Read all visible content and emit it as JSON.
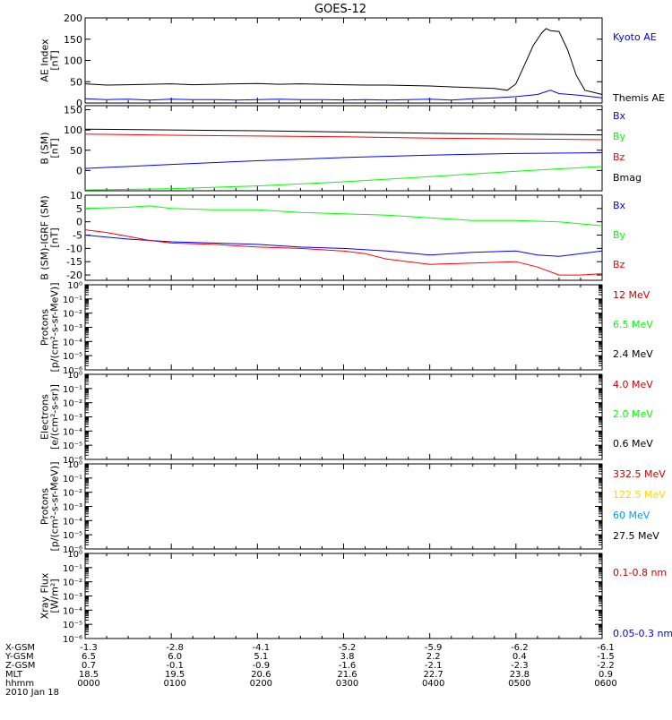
{
  "chart_data": {
    "type": "line",
    "title": "GOES-12",
    "colors": {
      "black": "#000000",
      "blue": "#0000ff",
      "red": "#ff0000",
      "green": "#00ff00",
      "darkred": "#cc0000",
      "yellow": "#ffd700",
      "cyan": "#0099ff"
    },
    "panels": [
      {
        "id": "ae",
        "ylabel_lines": [
          "AE Index",
          "[nT]"
        ],
        "scale": "linear",
        "ylim": [
          0,
          200
        ],
        "yticks": [
          "0",
          "50",
          "100",
          "150",
          "200"
        ],
        "yticks_values": [
          0,
          50,
          100,
          150,
          200
        ],
        "legend": [
          {
            "label": "Kyoto AE",
            "color": "#0000ff"
          },
          {
            "label": "Themis AE",
            "color": "#000000"
          }
        ],
        "series": [
          {
            "name": "Themis AE",
            "color": "#000000",
            "x": [
              0,
              0.25,
              0.5,
              0.75,
              1,
              1.25,
              1.5,
              1.75,
              2,
              2.25,
              2.5,
              2.75,
              3,
              3.25,
              3.5,
              3.75,
              4,
              4.25,
              4.5,
              4.75,
              4.9,
              5.0,
              5.1,
              5.2,
              5.3,
              5.35,
              5.4,
              5.5,
              5.6,
              5.7,
              5.8,
              5.9,
              6
            ],
            "y": [
              45,
              42,
              43,
              44,
              45,
              43,
              44,
              45,
              46,
              44,
              45,
              44,
              43,
              42,
              42,
              41,
              40,
              38,
              36,
              34,
              30,
              45,
              90,
              135,
              165,
              175,
              170,
              168,
              125,
              65,
              30,
              25,
              20
            ]
          },
          {
            "name": "Kyoto AE",
            "color": "#0000ff",
            "x": [
              0,
              0.25,
              0.5,
              0.75,
              1,
              1.25,
              1.5,
              1.75,
              2,
              2.25,
              2.5,
              2.75,
              3,
              3.25,
              3.5,
              3.75,
              4,
              4.25,
              4.5,
              4.75,
              5,
              5.25,
              5.4,
              5.5,
              5.75,
              6
            ],
            "y": [
              10,
              8,
              9,
              7,
              9,
              8,
              8,
              7,
              8,
              9,
              8,
              8,
              7,
              8,
              7,
              8,
              9,
              7,
              10,
              12,
              15,
              20,
              30,
              22,
              18,
              12
            ]
          }
        ]
      },
      {
        "id": "bsm",
        "ylabel_lines": [
          "B (SM)",
          "[nT]"
        ],
        "scale": "linear",
        "ylim": [
          -50,
          160
        ],
        "yticks": [
          "0",
          "50",
          "100",
          "150"
        ],
        "yticks_values": [
          0,
          50,
          100,
          150
        ],
        "legend": [
          {
            "label": "Bx",
            "color": "#0000ff"
          },
          {
            "label": "By",
            "color": "#00ff00"
          },
          {
            "label": "Bz",
            "color": "#ff0000"
          },
          {
            "label": "Bmag",
            "color": "#000000"
          }
        ],
        "series": [
          {
            "name": "Bmag",
            "color": "#000000",
            "x": [
              0,
              1,
              2,
              3,
              4,
              5,
              6
            ],
            "y": [
              102,
              100,
              98,
              95,
              92,
              90,
              88
            ]
          },
          {
            "name": "Bz",
            "color": "#ff0000",
            "x": [
              0,
              1,
              2,
              3,
              4,
              5,
              6
            ],
            "y": [
              90,
              87,
              85,
              83,
              80,
              78,
              76
            ]
          },
          {
            "name": "Bx",
            "color": "#0000ff",
            "x": [
              0,
              1,
              2,
              3,
              4,
              5,
              6
            ],
            "y": [
              5,
              15,
              24,
              32,
              38,
              42,
              44
            ]
          },
          {
            "name": "By",
            "color": "#00ff00",
            "x": [
              0,
              1,
              2,
              3,
              4,
              5,
              6
            ],
            "y": [
              -48,
              -45,
              -38,
              -28,
              -15,
              -2,
              10
            ]
          }
        ]
      },
      {
        "id": "bigrf",
        "ylabel_lines": [
          "B (SM)-IGRF (SM)",
          "[nT]"
        ],
        "scale": "linear",
        "ylim": [
          -22,
          10
        ],
        "yticks": [
          "-20",
          "-15",
          "-10",
          "-5",
          "0",
          "5",
          "10"
        ],
        "yticks_values": [
          -20,
          -15,
          -10,
          -5,
          0,
          5,
          10
        ],
        "legend": [
          {
            "label": "Bx",
            "color": "#0000ff"
          },
          {
            "label": "By",
            "color": "#00ff00"
          },
          {
            "label": "Bz",
            "color": "#ff0000"
          }
        ],
        "series": [
          {
            "name": "By",
            "color": "#00ff00",
            "x": [
              0,
              0.5,
              0.75,
              1,
              1.5,
              2,
              2.5,
              3,
              3.5,
              4,
              4.5,
              5,
              5.5,
              6
            ],
            "y": [
              5,
              5.5,
              6,
              5,
              4.5,
              4.5,
              3.5,
              3,
              2.5,
              1.5,
              0.5,
              0.5,
              0,
              -1.5
            ]
          },
          {
            "name": "Bx",
            "color": "#0000ff",
            "x": [
              0,
              0.5,
              1,
              1.5,
              2,
              2.5,
              3,
              3.5,
              4,
              4.25,
              4.5,
              5,
              5.25,
              5.5,
              5.75,
              6
            ],
            "y": [
              -5,
              -6.5,
              -7.5,
              -8,
              -8.5,
              -9.5,
              -10,
              -11,
              -12.5,
              -12,
              -11.5,
              -11,
              -12.5,
              -13,
              -12,
              -11
            ]
          },
          {
            "name": "Bz",
            "color": "#ff0000",
            "x": [
              0,
              0.25,
              0.5,
              0.75,
              1,
              1.5,
              2,
              2.5,
              3,
              3.25,
              3.5,
              4,
              4.5,
              5,
              5.25,
              5.5,
              5.75,
              6
            ],
            "y": [
              -3,
              -4,
              -5.5,
              -7,
              -8,
              -8.5,
              -9.5,
              -10,
              -11,
              -12,
              -14,
              -16,
              -15.5,
              -15,
              -17,
              -20,
              -20,
              -19.5
            ]
          }
        ]
      },
      {
        "id": "protons1",
        "ylabel_lines": [
          "Protons",
          "[p/(cm²-s-sr-MeV)]"
        ],
        "scale": "log",
        "ylim_exp": [
          -6,
          0
        ],
        "yticks": [
          "10⁻⁶",
          "10⁻⁵",
          "10⁻⁴",
          "10⁻³",
          "10⁻²",
          "10⁻¹",
          "10⁰"
        ],
        "legend": [
          {
            "label": "12 MeV",
            "color": "#cc0000"
          },
          {
            "label": "6.5 MeV",
            "color": "#00ff00"
          },
          {
            "label": "2.4 MeV",
            "color": "#000000"
          }
        ],
        "series": []
      },
      {
        "id": "electrons",
        "ylabel_lines": [
          "Electrons",
          "[e/(cm²-s-sr)]"
        ],
        "scale": "log",
        "ylim_exp": [
          -6,
          0
        ],
        "yticks": [
          "10⁻⁶",
          "10⁻⁵",
          "10⁻⁴",
          "10⁻³",
          "10⁻²",
          "10⁻¹",
          "10⁰"
        ],
        "legend": [
          {
            "label": "4.0 MeV",
            "color": "#cc0000"
          },
          {
            "label": "2.0 MeV",
            "color": "#00ff00"
          },
          {
            "label": "0.6 MeV",
            "color": "#000000"
          }
        ],
        "series": []
      },
      {
        "id": "protons2",
        "ylabel_lines": [
          "Protons",
          "[p/(cm²-s-sr-MeV)]"
        ],
        "scale": "log",
        "ylim_exp": [
          -6,
          0
        ],
        "yticks": [
          "10⁻⁶",
          "10⁻⁵",
          "10⁻⁴",
          "10⁻³",
          "10⁻²",
          "10⁻¹",
          "10⁰"
        ],
        "legend": [
          {
            "label": "332.5 MeV",
            "color": "#cc0000"
          },
          {
            "label": "122.5 MeV",
            "color": "#ffd700"
          },
          {
            "label": "60 MeV",
            "color": "#0099ff"
          },
          {
            "label": "27.5 MeV",
            "color": "#000000"
          }
        ],
        "series": []
      },
      {
        "id": "xray",
        "ylabel_lines": [
          "Xray Flux",
          "[W/m²]"
        ],
        "scale": "log",
        "ylim_exp": [
          -6,
          0
        ],
        "yticks": [
          "10⁻⁶",
          "10⁻⁵",
          "10⁻⁴",
          "10⁻³",
          "10⁻²",
          "10⁻¹",
          "10⁰"
        ],
        "legend": [
          {
            "label": "0.1-0.8 nm",
            "color": "#cc0000"
          },
          {
            "label": "0.05-0.3 nm",
            "color": "#0000ff"
          }
        ],
        "series": []
      }
    ],
    "xlim": [
      0,
      6
    ],
    "x_table": {
      "rows": [
        {
          "label": "X-GSM",
          "values": [
            "-1.3",
            "-2.8",
            "-4.1",
            "-5.2",
            "-5.9",
            "-6.2",
            "-6.1"
          ]
        },
        {
          "label": "Y-GSM",
          "values": [
            "6.5",
            "6.0",
            "5.1",
            "3.8",
            "2.2",
            "0.4",
            "-1.5"
          ]
        },
        {
          "label": "Z-GSM",
          "values": [
            "0.7",
            "-0.1",
            "-0.9",
            "-1.6",
            "-2.1",
            "-2.3",
            "-2.2"
          ]
        },
        {
          "label": "MLT",
          "values": [
            "18.5",
            "19.5",
            "20.6",
            "21.6",
            "22.7",
            "23.8",
            "0.9"
          ]
        },
        {
          "label": "hhmm",
          "values": [
            "0000",
            "0100",
            "0200",
            "0300",
            "0400",
            "0500",
            "0600"
          ]
        }
      ],
      "date": "2010 Jan 18"
    }
  }
}
